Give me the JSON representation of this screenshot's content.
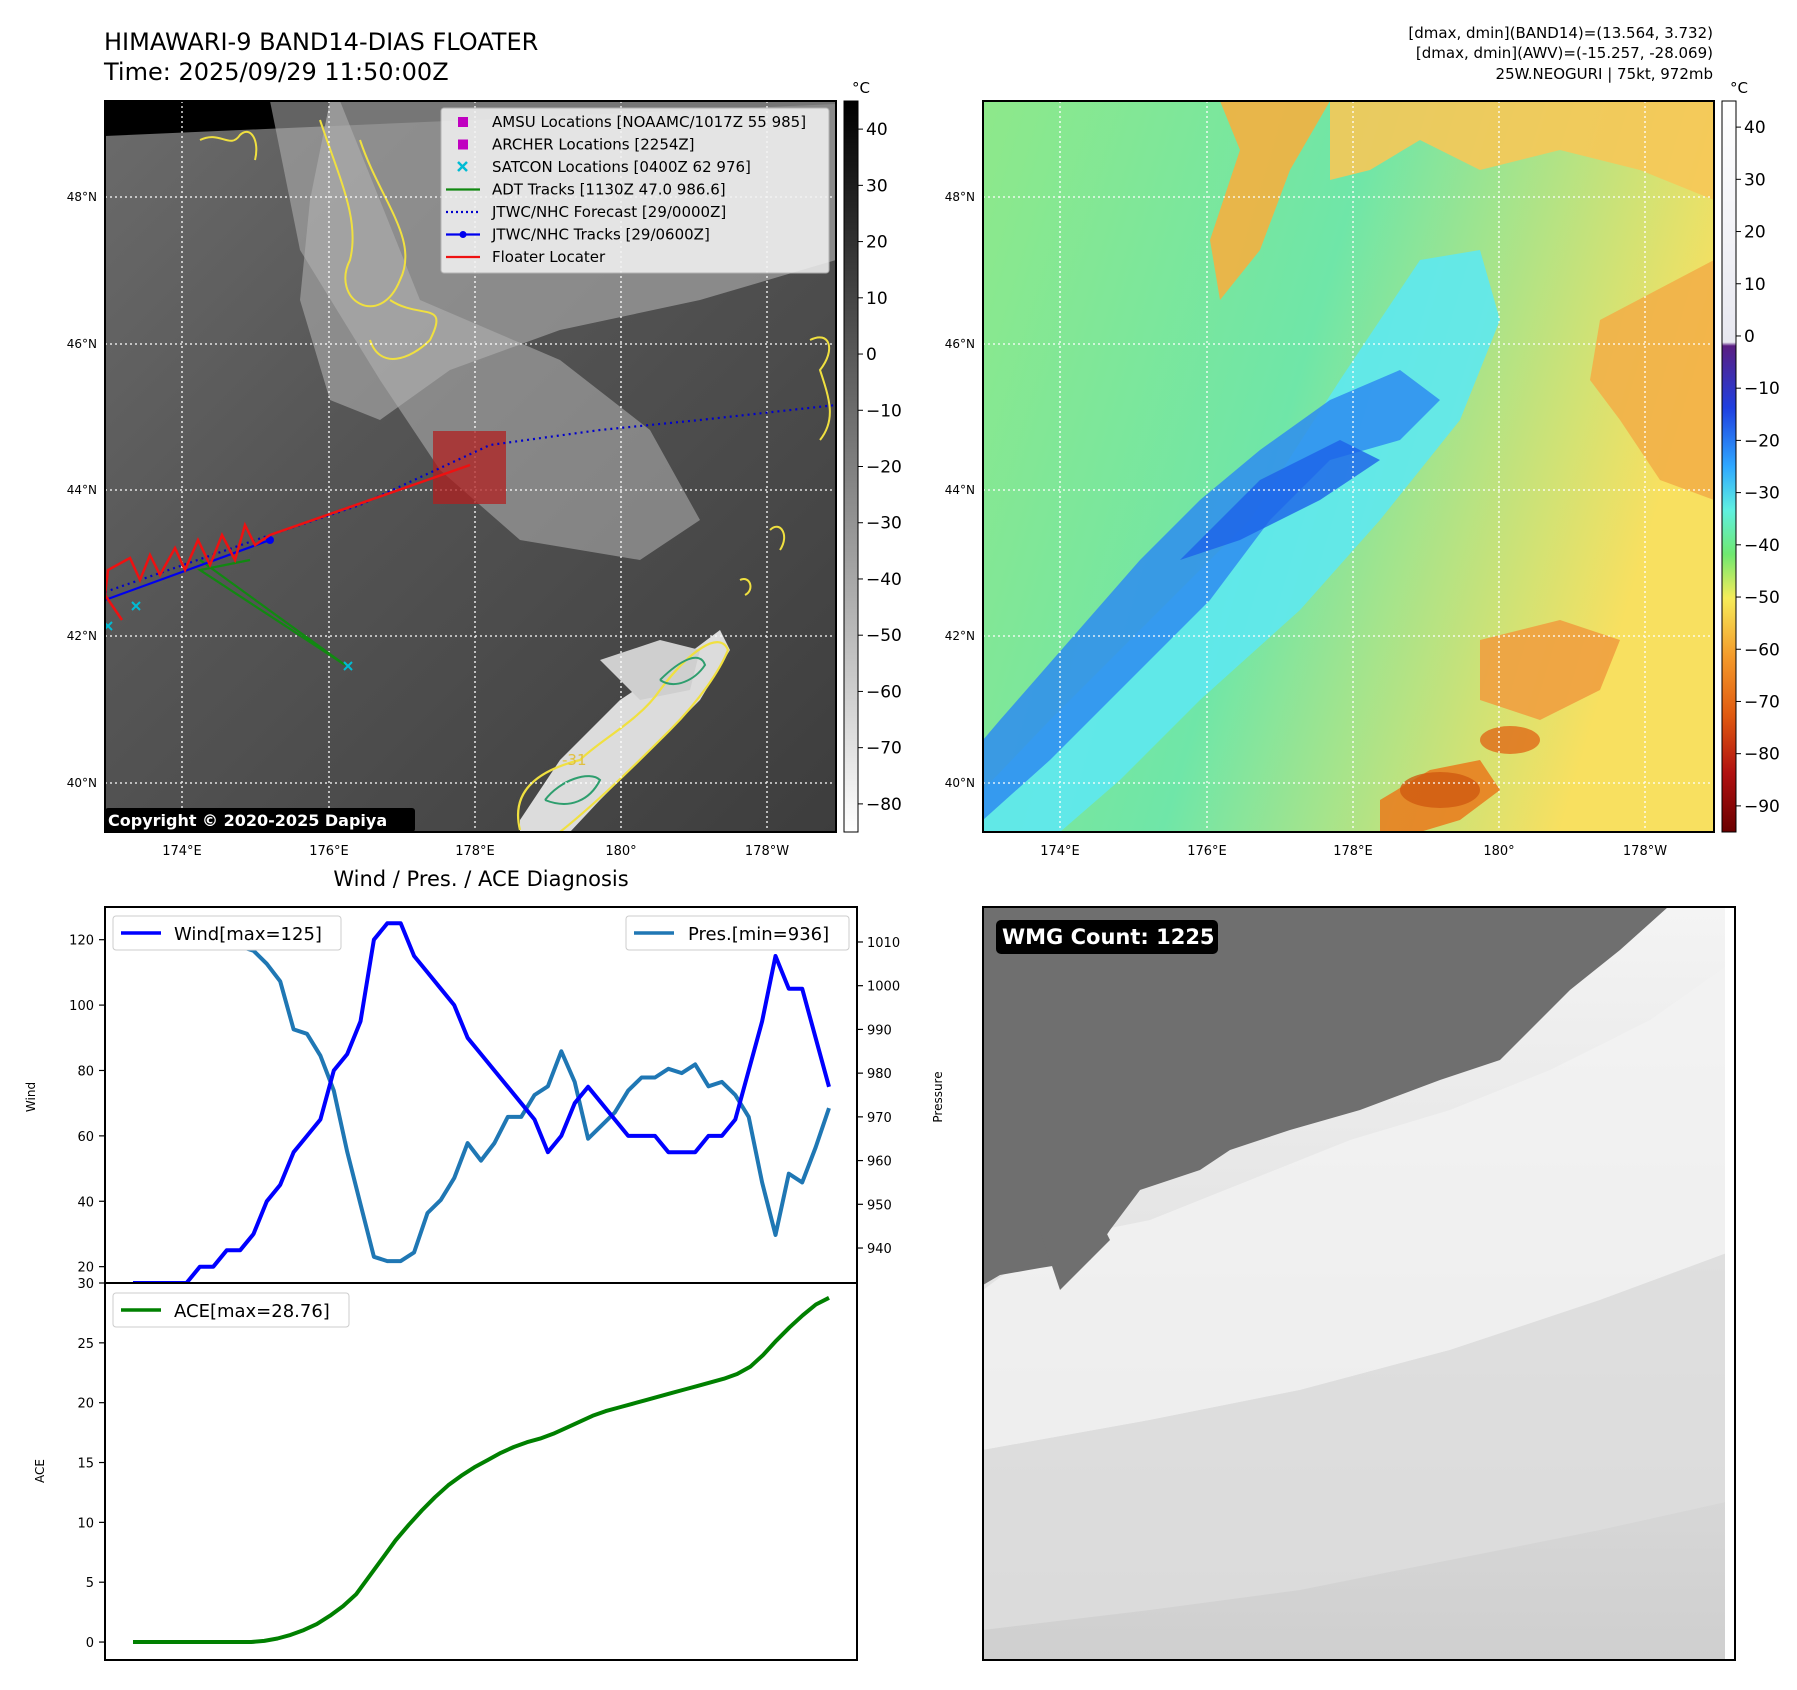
{
  "header": {
    "title_line1": "HIMAWARI-9 BAND14-DIAS FLOATER",
    "title_line2": "Time: 2025/09/29 11:50:00Z",
    "info_line1": "[dmax, dmin](BAND14)=(13.564, 3.732)",
    "info_line2": "[dmax, dmin](AWV)=(-15.257, -28.069)",
    "info_line3": "25W.NEOGURI | 75kt, 972mb"
  },
  "map": {
    "lat_labels": [
      "48°N",
      "46°N",
      "44°N",
      "42°N",
      "40°N"
    ],
    "lon_labels": [
      "174°E",
      "176°E",
      "178°E",
      "180°",
      "178°W"
    ],
    "copyright": "Copyright © 2020-2025 Dapiya",
    "contour_label": "-31",
    "legend": [
      {
        "label": "AMSU Locations [NOAAMC/1017Z 55 985]",
        "color": "#c000c0",
        "marker": "square"
      },
      {
        "label": "ARCHER Locations [2254Z]",
        "color": "#c000c0",
        "marker": "square"
      },
      {
        "label": "SATCON Locations [0400Z 62 976]",
        "color": "#00bcd4",
        "marker": "x"
      },
      {
        "label": "ADT Tracks [1130Z 47.0 986.6]",
        "color": "#118811",
        "marker": "line"
      },
      {
        "label": "JTWC/NHC Forecast [29/0000Z]",
        "color": "#0000cc",
        "marker": "dotted"
      },
      {
        "label": "JTWC/NHC Tracks [29/0600Z]",
        "color": "#0000ee",
        "marker": "line-dot"
      },
      {
        "label": "Floater Locater",
        "color": "#ee1111",
        "marker": "line"
      }
    ]
  },
  "colorbar_band14": {
    "unit": "°C",
    "ticks": [
      "40",
      "30",
      "20",
      "10",
      "0",
      "−10",
      "−20",
      "−30",
      "−40",
      "−50",
      "−60",
      "−70",
      "−80"
    ]
  },
  "colorbar_awv": {
    "unit": "°C",
    "ticks": [
      "40",
      "30",
      "20",
      "10",
      "0",
      "−10",
      "−20",
      "−30",
      "−40",
      "−50",
      "−60",
      "−70",
      "−80",
      "−90"
    ]
  },
  "wmg": {
    "label": "WMG Count: 1225"
  },
  "chart_data": [
    {
      "type": "line",
      "title": "Wind / Pres. / ACE Diagnosis",
      "ylabel": "Wind",
      "ylabel_right": "Pressure",
      "ylim": [
        15,
        130
      ],
      "ylim_right": [
        932,
        1018
      ],
      "y_ticks": [
        20,
        40,
        60,
        80,
        100,
        120
      ],
      "y_ticks_right": [
        940,
        950,
        960,
        970,
        980,
        990,
        1000,
        1010
      ],
      "grid": false,
      "series": [
        {
          "name": "Wind[max=125]",
          "color": "#0000ff",
          "axis": "left",
          "values": [
            15,
            15,
            15,
            15,
            15,
            20,
            20,
            25,
            25,
            30,
            40,
            45,
            55,
            60,
            65,
            80,
            85,
            95,
            120,
            125,
            125,
            115,
            110,
            105,
            100,
            90,
            85,
            80,
            75,
            70,
            65,
            55,
            60,
            70,
            75,
            70,
            65,
            60,
            60,
            60,
            55,
            55,
            55,
            60,
            60,
            65,
            80,
            95,
            115,
            105,
            105,
            90,
            75
          ]
        },
        {
          "name": "Pres.[min=936]",
          "color": "#1f77b4",
          "axis": "right",
          "values": [
            1009,
            1009,
            1012,
            1012,
            1012,
            1010,
            1009,
            1009,
            1009,
            1008,
            1005,
            1001,
            990,
            989,
            984,
            976,
            962,
            950,
            938,
            937,
            937,
            939,
            948,
            951,
            956,
            964,
            960,
            964,
            970,
            970,
            975,
            977,
            985,
            978,
            965,
            968,
            971,
            976,
            979,
            979,
            981,
            980,
            982,
            977,
            978,
            975,
            970,
            955,
            943,
            957,
            955,
            963,
            972
          ]
        }
      ]
    },
    {
      "type": "line",
      "ylabel": "ACE",
      "ylim": [
        -1.5,
        30
      ],
      "y_ticks": [
        0,
        5,
        10,
        15,
        20,
        25,
        30
      ],
      "grid": false,
      "series": [
        {
          "name": "ACE[max=28.76]",
          "color": "#008000",
          "values": [
            0,
            0,
            0,
            0,
            0,
            0,
            0,
            0,
            0,
            0,
            0.1,
            0.3,
            0.6,
            1.0,
            1.5,
            2.2,
            3.0,
            4.0,
            5.5,
            7.0,
            8.5,
            9.8,
            11.0,
            12.1,
            13.1,
            13.9,
            14.6,
            15.2,
            15.8,
            16.3,
            16.7,
            17.0,
            17.4,
            17.9,
            18.4,
            18.9,
            19.3,
            19.6,
            19.9,
            20.2,
            20.5,
            20.8,
            21.1,
            21.4,
            21.7,
            22.0,
            22.4,
            23.0,
            24.0,
            25.2,
            26.3,
            27.3,
            28.2,
            28.76
          ]
        }
      ]
    }
  ]
}
